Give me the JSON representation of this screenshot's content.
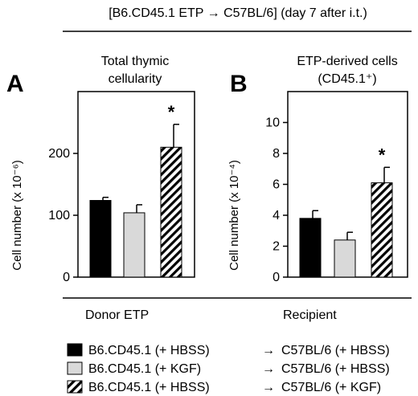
{
  "header": {
    "title": "[B6.CD45.1 ETP → C57BL/6] (day 7 after i.t.)"
  },
  "colors": {
    "hbss_bar": "#000000",
    "kgf_bar": "#d9d9d9",
    "recipient_kgf_bar": "hatched"
  },
  "chart_data": [
    {
      "type": "bar",
      "panel_letter": "A",
      "title": "Total thymic cellularity",
      "title_lines": [
        "Total thymic",
        "cellularity"
      ],
      "ylabel": "Cell number (x 10⁻⁶)",
      "ylim": [
        0,
        300
      ],
      "yticks": [
        0,
        100,
        200
      ],
      "grid": false,
      "series": [
        {
          "fill": "solid-black",
          "value": 124,
          "error": 5,
          "significance": ""
        },
        {
          "fill": "light-gray",
          "value": 104,
          "error": 13,
          "significance": ""
        },
        {
          "fill": "hatched",
          "value": 210,
          "error": 37,
          "significance": "*"
        }
      ]
    },
    {
      "type": "bar",
      "panel_letter": "B",
      "title": "ETP-derived cells (CD45.1⁺)",
      "title_lines": [
        "ETP-derived cells",
        "(CD45.1⁺)"
      ],
      "ylabel": "Cell number (x 10⁻⁴)",
      "ylim": [
        0,
        12
      ],
      "yticks": [
        0,
        2,
        4,
        6,
        8,
        10
      ],
      "grid": false,
      "series": [
        {
          "fill": "solid-black",
          "value": 3.8,
          "error": 0.5,
          "significance": ""
        },
        {
          "fill": "light-gray",
          "value": 2.4,
          "error": 0.5,
          "significance": ""
        },
        {
          "fill": "hatched",
          "value": 6.1,
          "error": 1.0,
          "significance": "*"
        }
      ]
    }
  ],
  "legend": {
    "donor_header": "Donor ETP",
    "recipient_header": "Recipient",
    "rows": [
      {
        "swatch": "solid-black",
        "donor": "B6.CD45.1 (+ HBSS)",
        "arrow": "→",
        "recipient": "C57BL/6 (+ HBSS)"
      },
      {
        "swatch": "light-gray",
        "donor": "B6.CD45.1 (+ KGF)",
        "arrow": "→",
        "recipient": "C57BL/6 (+ HBSS)"
      },
      {
        "swatch": "hatched",
        "donor": "B6.CD45.1 (+ HBSS)",
        "arrow": "→",
        "recipient": "C57BL/6 (+ KGF)"
      }
    ]
  }
}
